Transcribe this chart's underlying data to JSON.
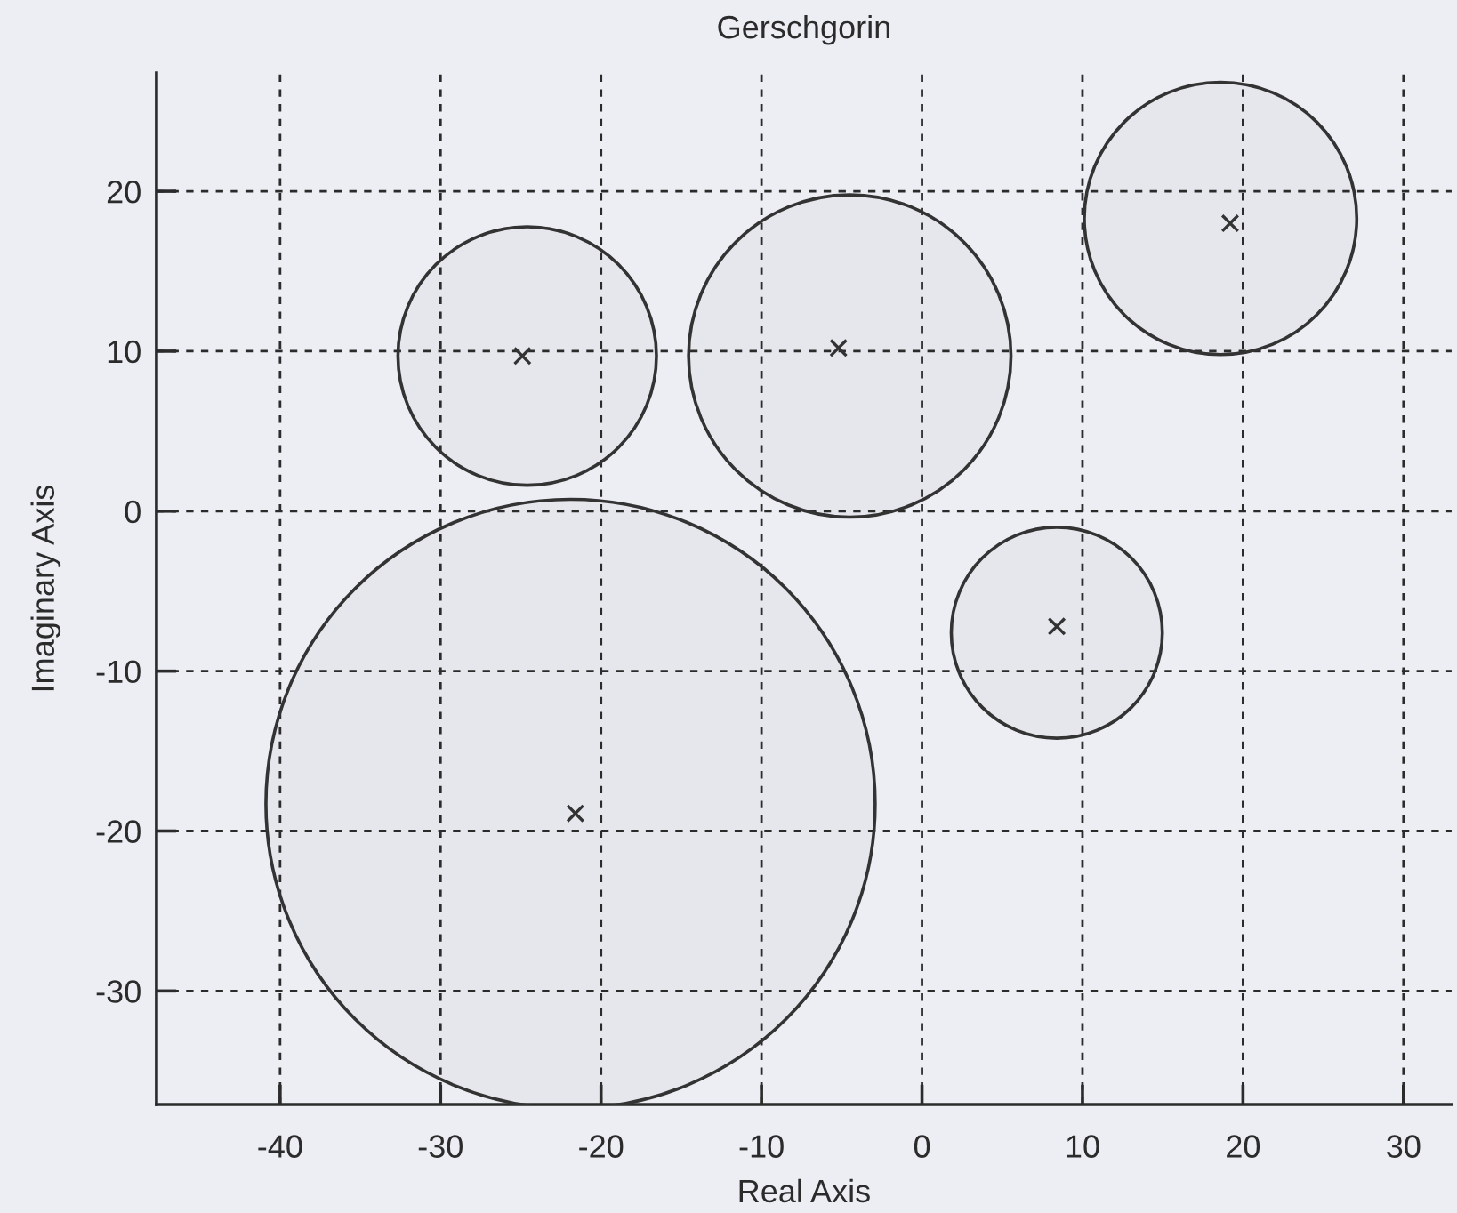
{
  "chart_data": {
    "type": "bubble",
    "title": "Gerschgorin",
    "xlabel": "Real Axis",
    "ylabel": "Imaginary Axis",
    "xlim": [
      -47.7,
      33
    ],
    "ylim": [
      -37.1,
      27.4
    ],
    "xticks": [
      -40,
      -30,
      -20,
      -10,
      0,
      10,
      20,
      30
    ],
    "yticks": [
      -30,
      -20,
      -10,
      0,
      10,
      20
    ],
    "grid": true,
    "series": [
      {
        "color": "#333333",
        "x": [
          -24.6,
          -4.5,
          18.6,
          8.4,
          -21.9
        ],
        "values": [
          9.7,
          9.7,
          18.3,
          -7.6,
          -18.3
        ],
        "sizes": [
          0.18,
          0.28,
          0.2,
          0.12,
          1
        ]
      },
      {
        "type": "scatter",
        "color": "#333333",
        "marker": "cross",
        "x": [
          -24.9,
          -5.2,
          19.2,
          8.4,
          -21.6
        ],
        "values": [
          9.7,
          10.2,
          18.0,
          -7.2,
          -18.9
        ]
      }
    ]
  }
}
